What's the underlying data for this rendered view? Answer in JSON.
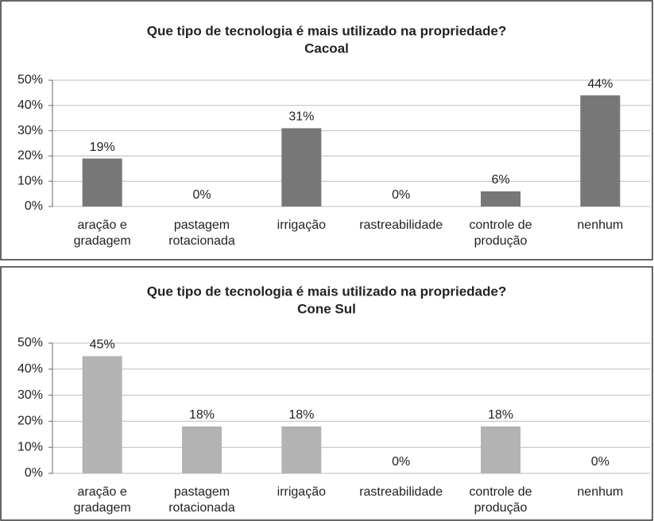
{
  "chart_data": [
    {
      "type": "bar",
      "title": "Que tipo de tecnologia é mais utilizado na propriedade?",
      "subtitle": "Cacoal",
      "categories": [
        "aração e\ngradagem",
        "pastagem\nrotacionada",
        "irrigação",
        "rastreabilidade",
        "controle de\nprodução",
        "nenhum"
      ],
      "values": [
        19,
        0,
        31,
        0,
        6,
        44
      ],
      "value_labels": [
        "19%",
        "0%",
        "31%",
        "0%",
        "6%",
        "44%"
      ],
      "color": "#777777",
      "ylim": [
        0,
        50
      ],
      "yticks": [
        {
          "value": 0,
          "label": "0%"
        },
        {
          "value": 10,
          "label": "10%"
        },
        {
          "value": 20,
          "label": "20%"
        },
        {
          "value": 30,
          "label": "30%"
        },
        {
          "value": 40,
          "label": "40%"
        },
        {
          "value": 50,
          "label": "50%"
        }
      ],
      "grid": true
    },
    {
      "type": "bar",
      "title": "Que tipo de tecnologia é mais utilizado na propriedade?",
      "subtitle": "Cone Sul",
      "categories": [
        "aração e\ngradagem",
        "pastagem\nrotacionada",
        "irrigação",
        "rastreabilidade",
        "controle de\nprodução",
        "nenhum"
      ],
      "values": [
        45,
        18,
        18,
        0,
        18,
        0
      ],
      "value_labels": [
        "45%",
        "18%",
        "18%",
        "0%",
        "18%",
        "0%"
      ],
      "color": "#b3b3b3",
      "ylim": [
        0,
        50
      ],
      "yticks": [
        {
          "value": 0,
          "label": "0%"
        },
        {
          "value": 10,
          "label": "10%"
        },
        {
          "value": 20,
          "label": "20%"
        },
        {
          "value": 30,
          "label": "30%"
        },
        {
          "value": 40,
          "label": "40%"
        },
        {
          "value": 50,
          "label": "50%"
        }
      ],
      "grid": true
    }
  ]
}
